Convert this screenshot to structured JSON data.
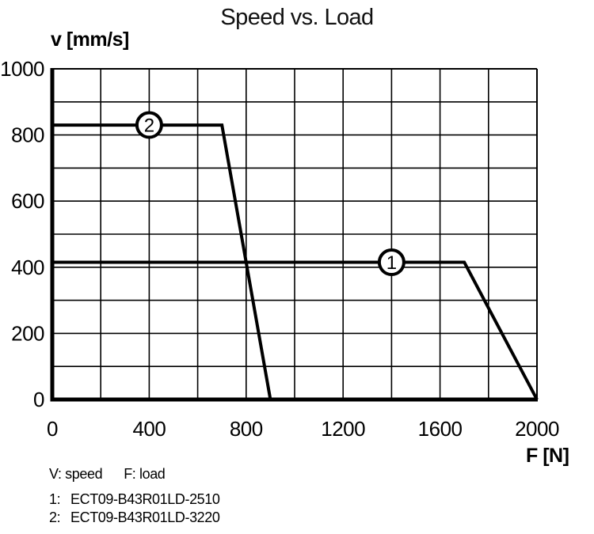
{
  "page": {
    "background": "#ffffff",
    "line_color": "#000000"
  },
  "chart_data": {
    "type": "line",
    "title": "Speed vs. Load",
    "xlabel": "F [N]",
    "ylabel": "v [mm/s]",
    "xlim": [
      0,
      2000
    ],
    "ylim": [
      0,
      1000
    ],
    "x_ticks": [
      0,
      400,
      800,
      1200,
      1600,
      2000
    ],
    "y_ticks": [
      0,
      200,
      400,
      600,
      800,
      1000
    ],
    "x_grid_step": 200,
    "y_grid_step": 100,
    "grid": true,
    "legend_position": "below-left",
    "series": [
      {
        "label": "1",
        "name": "ECT09-B43R01LD-2510",
        "points": [
          [
            0,
            415
          ],
          [
            1700,
            415
          ],
          [
            2000,
            0
          ]
        ],
        "marker_at": [
          1400,
          415
        ],
        "color": "#000000"
      },
      {
        "label": "2",
        "name": "ECT09-B43R01LD-3220",
        "points": [
          [
            0,
            830
          ],
          [
            700,
            830
          ],
          [
            900,
            0
          ]
        ],
        "marker_at": [
          400,
          830
        ],
        "color": "#000000"
      }
    ]
  },
  "legend": {
    "v_note": "V: speed",
    "f_note": "F: load",
    "items": [
      {
        "key": "1:",
        "value": "ECT09-B43R01LD-2510"
      },
      {
        "key": "2:",
        "value": "ECT09-B43R01LD-3220"
      }
    ]
  }
}
